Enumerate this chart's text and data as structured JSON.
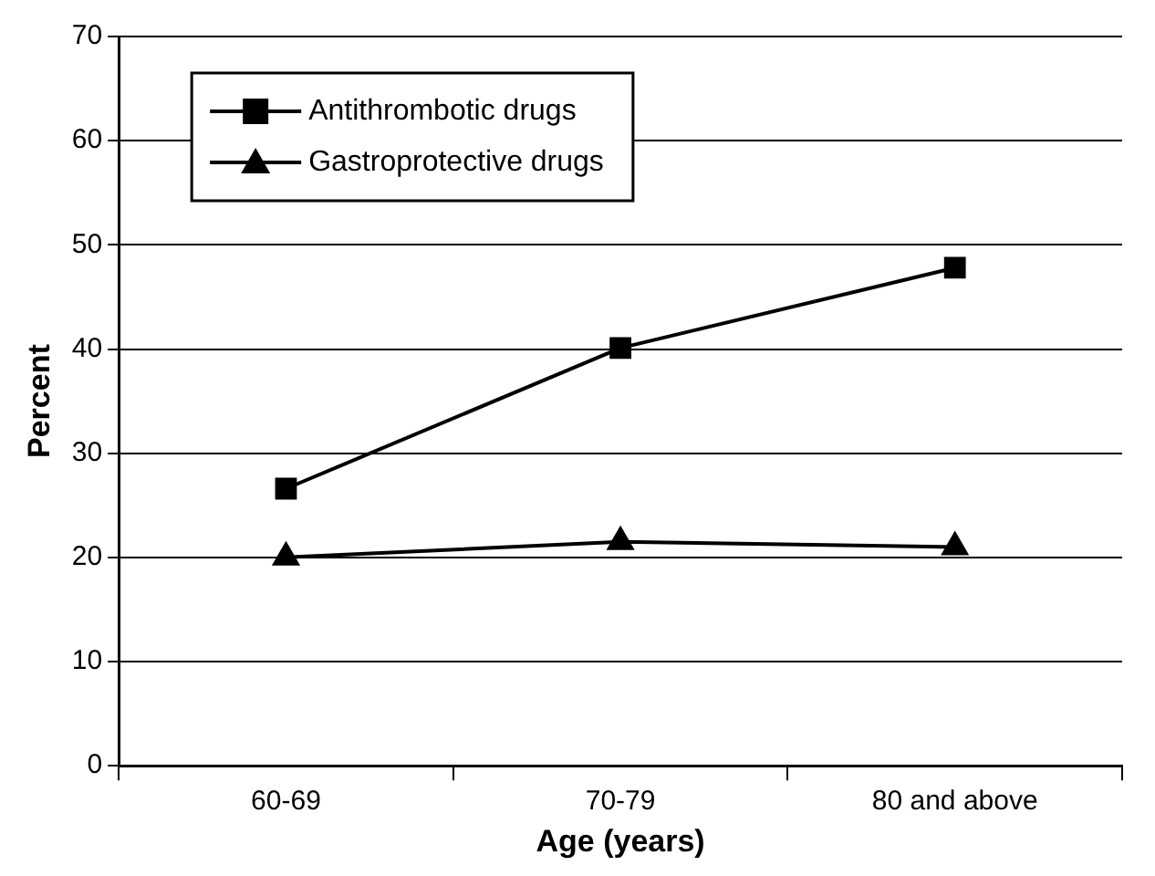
{
  "chart_data": {
    "type": "line",
    "xlabel": "Age (years)",
    "ylabel": "Percent",
    "categories": [
      "60-69",
      "70-79",
      "80 and above"
    ],
    "series": [
      {
        "name": "Antithrombotic drugs",
        "color": "#000000",
        "marker": "square",
        "values": [
          26.6,
          40.1,
          47.8
        ]
      },
      {
        "name": "Gastroprotective drugs",
        "color": "#000000",
        "marker": "triangle",
        "values": [
          20,
          21.5,
          21
        ]
      }
    ],
    "ylim": [
      0,
      70
    ],
    "yticks": [
      0,
      10,
      20,
      30,
      40,
      50,
      60,
      70
    ],
    "grid": "y",
    "legend": "top left",
    "line_style": "solid"
  }
}
